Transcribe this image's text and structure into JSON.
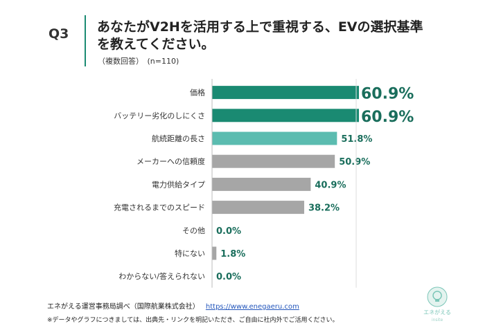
{
  "header": {
    "q_number": "Q3",
    "title": "あなたがV2Hを活用する上で重視する、EVの選択基準を教えてください。",
    "subtitle": "（複数回答）　(n=110)"
  },
  "chart_data": {
    "type": "bar",
    "orientation": "horizontal",
    "title": "あなたがV2Hを活用する上で重視する、EVの選択基準を教えてください。",
    "xlabel": "",
    "ylabel": "",
    "xlim": [
      0,
      100
    ],
    "unit": "%",
    "categories": [
      "価格",
      "バッテリー劣化のしにくさ",
      "航続距離の長さ",
      "メーカーへの信頼度",
      "電力供給タイプ",
      "充電されるまでのスピード",
      "その他",
      "特にない",
      "わからない/答えられない"
    ],
    "values": [
      60.9,
      60.9,
      51.8,
      50.9,
      40.9,
      38.2,
      0.0,
      1.8,
      0.0
    ],
    "labels": [
      "60.9%",
      "60.9%",
      "51.8%",
      "50.9%",
      "40.9%",
      "38.2%",
      "0.0%",
      "1.8%",
      "0.0%"
    ],
    "bar_colors": [
      "#1a8a72",
      "#1a8a72",
      "#5bbcb0",
      "#a6a6a6",
      "#a6a6a6",
      "#a6a6a6",
      "#a6a6a6",
      "#a6a6a6",
      "#a6a6a6"
    ],
    "highlight": [
      true,
      true,
      false,
      false,
      false,
      false,
      false,
      false,
      false
    ]
  },
  "colors": {
    "accent": "#1a8a72",
    "secondary": "#5bbcb0",
    "neutral": "#a6a6a6",
    "value_text": "#1a6e5c"
  },
  "footer": {
    "source": "エネがえる運営事務局調べ（国際航業株式会社）",
    "url": "https://www.enegaeru.com",
    "note": "※データやグラフにつきましては、出典先・リンクを明記いただき、ご自由に社内外でご活用ください。"
  },
  "logo": {
    "text_top": "エネがえる",
    "text_bottom": "insite"
  }
}
